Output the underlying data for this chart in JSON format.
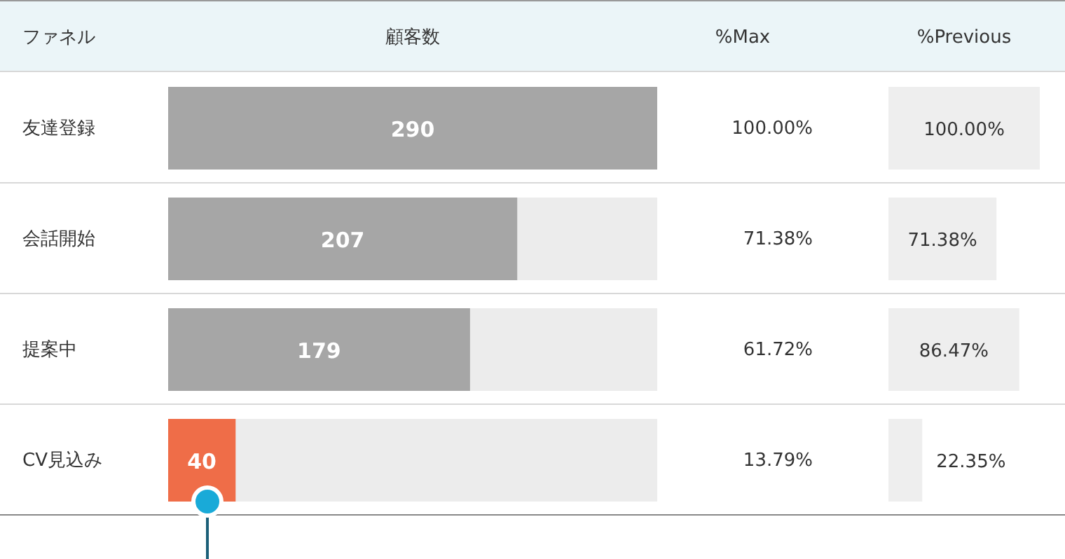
{
  "chart_data": [
    {
      "type": "bar",
      "orientation": "horizontal",
      "title": "顧客数",
      "ylabel": "ファネル",
      "categories": [
        "友達登録",
        "会話開始",
        "提案中",
        "CV見込み"
      ],
      "values": [
        290,
        207,
        179,
        40
      ],
      "colors": [
        "#a6a6a6",
        "#a6a6a6",
        "#a6a6a6",
        "#ef6d48"
      ],
      "xlim": [
        0,
        290
      ],
      "data_labels": true,
      "tick_labels": "y"
    },
    {
      "type": "other",
      "title": "%Max",
      "values": [
        100,
        71.38,
        61.72,
        13.79
      ],
      "value_labels": [
        "100.00%",
        "71.38%",
        "61.72%",
        "13.79%"
      ]
    },
    {
      "type": "bar",
      "orientation": "horizontal",
      "title": "%Previous",
      "values": [
        100,
        71.38,
        86.47,
        22.35
      ],
      "value_labels": [
        "100.00%",
        "71.38%",
        "86.47%",
        "22.35%"
      ],
      "color": "#eeeeee",
      "xlim": [
        0,
        100
      ]
    }
  ]
}
